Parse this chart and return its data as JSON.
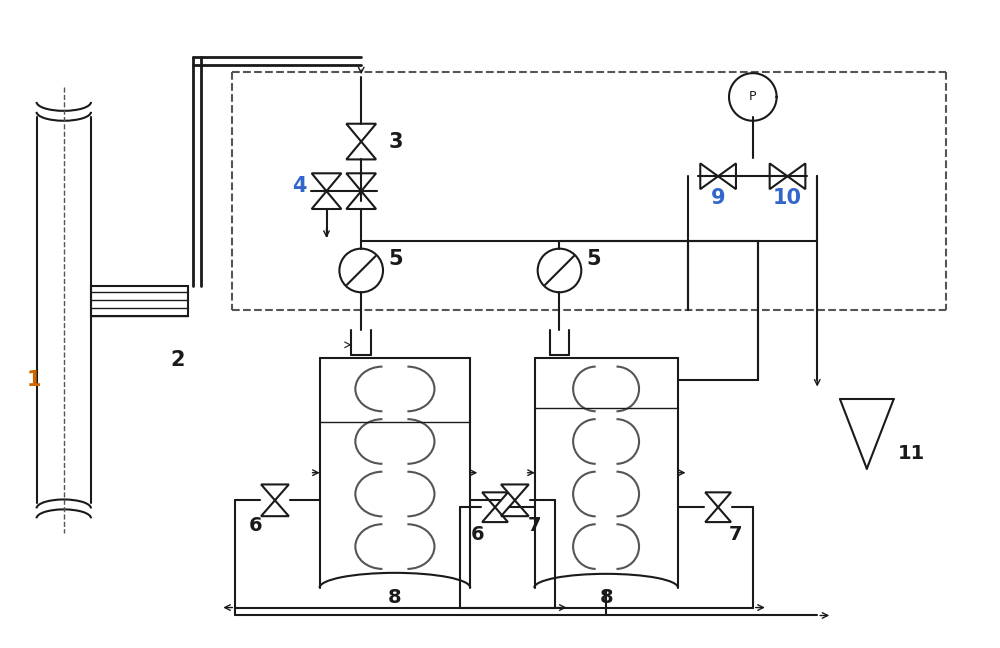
{
  "bg_color": "#ffffff",
  "line_color": "#1a1a1a",
  "dash_color": "#555555",
  "label_color_orange": "#cc6600",
  "label_color_blue": "#3366cc",
  "label_color_black": "#1a1a1a",
  "figsize": [
    10.0,
    6.48
  ],
  "dpi": 100
}
